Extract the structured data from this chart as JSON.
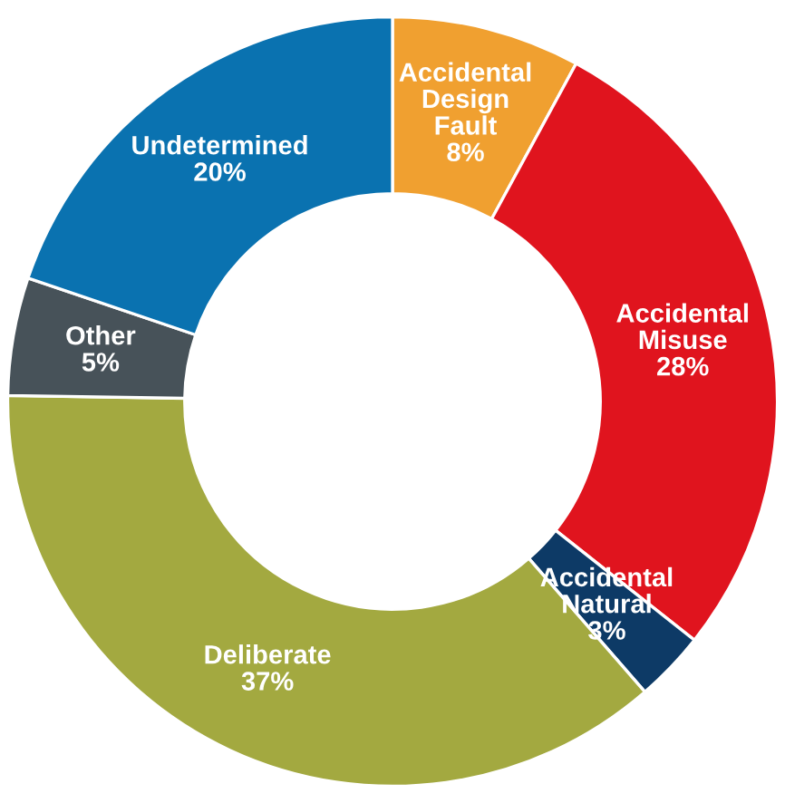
{
  "chart_data": {
    "type": "donut",
    "categories": [
      "Accidental Design Fault",
      "Accidental Misuse",
      "Accidental Natural",
      "Deliberate",
      "Other",
      "Undetermined"
    ],
    "values": [
      8,
      28,
      3,
      37,
      5,
      20
    ],
    "value_labels": [
      "8%",
      "28%",
      "3%",
      "37%",
      "5%",
      "20%"
    ],
    "colors": [
      "#f0a030",
      "#e0141e",
      "#0d3a66",
      "#a3a940",
      "#475259",
      "#0a72b0"
    ]
  }
}
